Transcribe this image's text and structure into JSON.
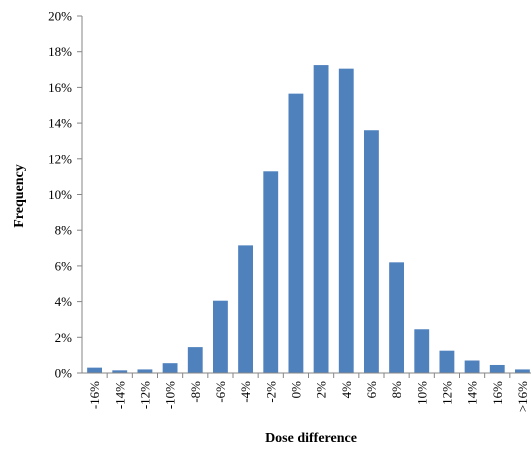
{
  "chart_data": {
    "type": "bar",
    "title": "",
    "xlabel": "Dose difference",
    "ylabel": "Frequency",
    "ylim": [
      0,
      20
    ],
    "y_tick_values": [
      0,
      2,
      4,
      6,
      8,
      10,
      12,
      14,
      16,
      18,
      20
    ],
    "y_tick_labels": [
      "0%",
      "2%",
      "4%",
      "6%",
      "8%",
      "10%",
      "12%",
      "14%",
      "16%",
      "18%",
      "20%"
    ],
    "categories": [
      "-16%",
      "-14%",
      "-12%",
      "-10%",
      "-8%",
      "-6%",
      "-4%",
      "-2%",
      "0%",
      "2%",
      "4%",
      "6%",
      "8%",
      "10%",
      "12%",
      "14%",
      "16%",
      ">16%"
    ],
    "values": [
      0.3,
      0.15,
      0.2,
      0.55,
      1.45,
      4.05,
      7.15,
      11.3,
      15.65,
      17.25,
      17.05,
      13.6,
      6.2,
      2.45,
      1.25,
      0.7,
      0.45,
      0.2
    ],
    "bar_color": "#4f81bd",
    "grid": false,
    "legend": "none"
  }
}
